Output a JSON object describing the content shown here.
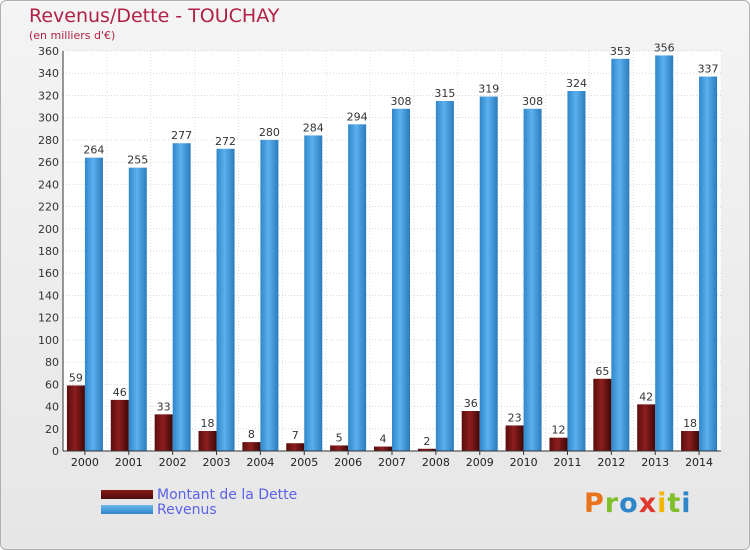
{
  "header": {
    "title": "Revenus/Dette - TOUCHAY",
    "subtitle": "(en milliers d'€)"
  },
  "legend": {
    "debt_label": "Montant de la Dette",
    "revenue_label": "Revenus"
  },
  "logo": {
    "text": "Proxiti"
  },
  "colors": {
    "debt": "#7a1616",
    "revenue": "#4aa3e6",
    "title": "#b22045",
    "legend_text": "#5b62e6"
  },
  "chart_data": {
    "type": "bar",
    "categories": [
      "2000",
      "2001",
      "2002",
      "2003",
      "2004",
      "2005",
      "2006",
      "2007",
      "2008",
      "2009",
      "2010",
      "2011",
      "2012",
      "2013",
      "2014"
    ],
    "series": [
      {
        "name": "Montant de la Dette",
        "values": [
          59,
          46,
          33,
          18,
          8,
          7,
          5,
          4,
          2,
          36,
          23,
          12,
          65,
          42,
          18
        ]
      },
      {
        "name": "Revenus",
        "values": [
          264,
          255,
          277,
          272,
          280,
          284,
          294,
          308,
          315,
          319,
          308,
          324,
          353,
          356,
          337
        ]
      }
    ],
    "ylim": [
      0,
      360
    ],
    "yticks": [
      0,
      20,
      40,
      60,
      80,
      100,
      120,
      140,
      160,
      180,
      200,
      220,
      240,
      260,
      280,
      300,
      320,
      340,
      360
    ],
    "grid": true,
    "legend_position": "bottom-left"
  }
}
